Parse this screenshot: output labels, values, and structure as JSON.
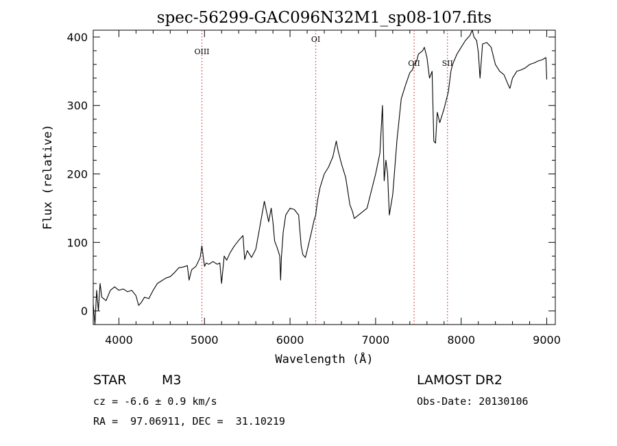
{
  "chart_data": {
    "type": "line",
    "title": "spec-56299-GAC096N32M1_sp08-107.fits",
    "xlabel": "Wavelength (Å)",
    "ylabel": "Flux (relative)",
    "xlim": [
      3700,
      9100
    ],
    "ylim": [
      -20,
      410
    ],
    "xticks": [
      4000,
      5000,
      6000,
      7000,
      8000,
      9000
    ],
    "yticks": [
      0,
      100,
      200,
      300,
      400
    ],
    "grid": false,
    "series": [
      {
        "line_color": "#000000",
        "x": [
          3700,
          3720,
          3740,
          3760,
          3780,
          3800,
          3850,
          3900,
          3950,
          4000,
          4050,
          4100,
          4150,
          4200,
          4230,
          4260,
          4300,
          4350,
          4400,
          4450,
          4500,
          4550,
          4600,
          4650,
          4700,
          4750,
          4800,
          4820,
          4850,
          4900,
          4950,
          4970,
          5000,
          5020,
          5050,
          5100,
          5150,
          5180,
          5200,
          5230,
          5260,
          5300,
          5350,
          5400,
          5450,
          5470,
          5500,
          5550,
          5600,
          5650,
          5700,
          5750,
          5780,
          5800,
          5820,
          5850,
          5880,
          5890,
          5900,
          5920,
          5950,
          6000,
          6050,
          6100,
          6130,
          6150,
          6180,
          6200,
          6250,
          6280,
          6300,
          6320,
          6350,
          6400,
          6450,
          6500,
          6540,
          6560,
          6580,
          6600,
          6650,
          6700,
          6730,
          6750,
          6800,
          6850,
          6900,
          6950,
          7000,
          7050,
          7080,
          7100,
          7120,
          7140,
          7160,
          7200,
          7250,
          7300,
          7350,
          7400,
          7430,
          7450,
          7480,
          7500,
          7550,
          7570,
          7600,
          7630,
          7660,
          7680,
          7700,
          7720,
          7750,
          7800,
          7850,
          7880,
          7900,
          7950,
          8000,
          8050,
          8100,
          8130,
          8150,
          8180,
          8200,
          8220,
          8250,
          8300,
          8350,
          8400,
          8450,
          8500,
          8550,
          8570,
          8600,
          8650,
          8700,
          8750,
          8800,
          8850,
          8900,
          8950,
          8990,
          9000
        ],
        "y": [
          10,
          -20,
          30,
          0,
          40,
          20,
          15,
          30,
          35,
          30,
          32,
          28,
          30,
          22,
          8,
          12,
          20,
          18,
          30,
          40,
          44,
          48,
          50,
          56,
          63,
          64,
          66,
          45,
          60,
          65,
          78,
          95,
          65,
          70,
          68,
          72,
          68,
          70,
          40,
          80,
          74,
          85,
          95,
          103,
          110,
          75,
          88,
          78,
          90,
          125,
          160,
          130,
          150,
          130,
          102,
          92,
          80,
          45,
          80,
          115,
          140,
          150,
          148,
          140,
          95,
          82,
          78,
          88,
          115,
          132,
          140,
          160,
          180,
          200,
          210,
          225,
          248,
          235,
          225,
          215,
          195,
          155,
          145,
          135,
          140,
          145,
          150,
          175,
          200,
          230,
          300,
          190,
          220,
          200,
          140,
          170,
          250,
          310,
          330,
          348,
          352,
          360,
          365,
          375,
          380,
          385,
          370,
          340,
          350,
          248,
          245,
          290,
          275,
          295,
          320,
          350,
          360,
          375,
          385,
          395,
          402,
          410,
          400,
          395,
          378,
          340,
          390,
          392,
          385,
          360,
          350,
          345,
          330,
          325,
          340,
          350,
          352,
          355,
          360,
          362,
          365,
          367,
          370,
          338
        ]
      }
    ],
    "reference_lines": [
      {
        "label": "OIII",
        "x": 4970,
        "line_color": "#cc3333"
      },
      {
        "label": "OI",
        "x": 6300,
        "line_color": "#cc3333"
      },
      {
        "label": "OII",
        "x": 7450,
        "line_color": "#cc3333"
      },
      {
        "label": "SII",
        "x": 7840,
        "line_color": "#cc3333"
      }
    ]
  },
  "footer": {
    "object_class": "STAR",
    "subclass": "M3",
    "survey": "LAMOST DR2",
    "redshift": "cz = -6.6 ± 0.9 km/s",
    "obs_date": "Obs-Date: 20130106",
    "coords": "RA =  97.06911, DEC =  31.10219"
  }
}
